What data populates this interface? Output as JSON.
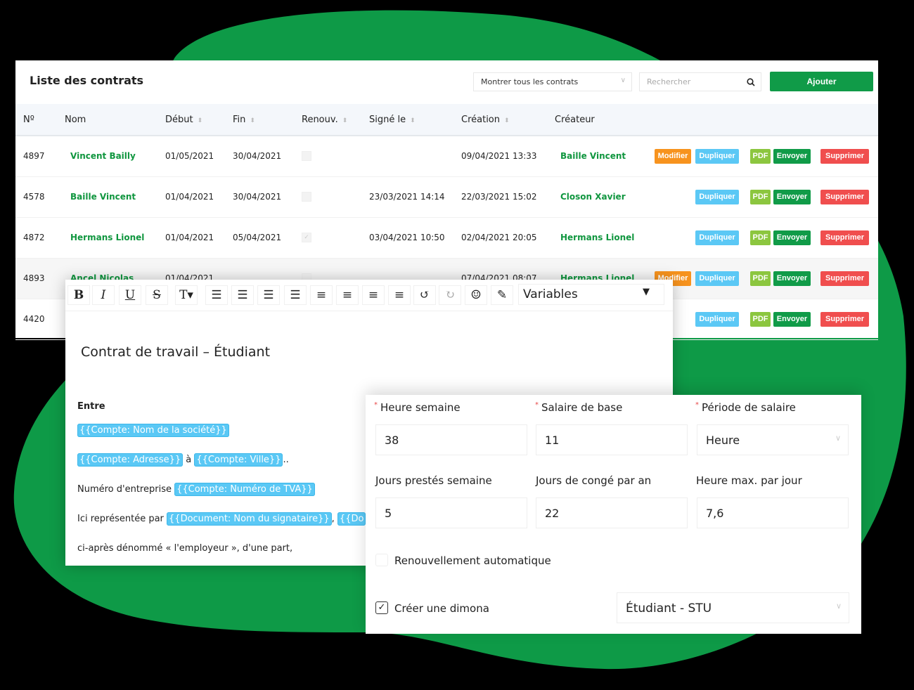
{
  "colors": {
    "brand": "#109b48",
    "blob": "#0e9a47",
    "modifier": "#f7931e",
    "dupliquer": "#5bc8f5",
    "pdf": "#8cc63f",
    "envoyer": "#109b48",
    "supprimer": "#f04e4e"
  },
  "contracts": {
    "title": "Liste des contrats",
    "filter": "Montrer tous les contrats",
    "search_placeholder": "Rechercher",
    "add_label": "Ajouter",
    "columns": [
      "Nº",
      "Nom",
      "Début",
      "Fin",
      "Renouv.",
      "Signé le",
      "Création",
      "Créateur"
    ],
    "actions": {
      "modifier": "Modifier",
      "dupliquer": "Dupliquer",
      "pdf": "PDF",
      "envoyer": "Envoyer",
      "supprimer": "Supprimer"
    },
    "rows": [
      {
        "id": "4897",
        "name": "Vincent Bailly",
        "start": "01/05/2021",
        "end": "30/04/2021",
        "renew": false,
        "signed": "",
        "created": "09/04/2021 13:33",
        "creator": "Baille Vincent",
        "editable": true
      },
      {
        "id": "4578",
        "name": "Baille Vincent",
        "start": "01/04/2021",
        "end": "30/04/2021",
        "renew": false,
        "signed": "23/03/2021 14:14",
        "created": "22/03/2021 15:02",
        "creator": "Closon Xavier",
        "editable": false
      },
      {
        "id": "4872",
        "name": "Hermans Lionel",
        "start": "01/04/2021",
        "end": "05/04/2021",
        "renew": true,
        "signed": "03/04/2021 10:50",
        "created": "02/04/2021 20:05",
        "creator": "Hermans Lionel",
        "editable": false
      },
      {
        "id": "4893",
        "name": "Ancel Nicolas",
        "start": "01/04/2021",
        "end": "",
        "renew": false,
        "signed": "",
        "created": "07/04/2021 08:07",
        "creator": "Hermans Lionel",
        "editable": true
      },
      {
        "id": "4420",
        "name": "",
        "start": "",
        "end": "",
        "renew": false,
        "signed": "",
        "created": "",
        "creator": "",
        "editable": false
      }
    ]
  },
  "editor": {
    "toolbar": [
      {
        "icon": "bold-icon",
        "glyph": "B"
      },
      {
        "icon": "italic-icon",
        "glyph": "I"
      },
      {
        "icon": "underline-icon",
        "glyph": "U"
      },
      {
        "icon": "strikethrough-icon",
        "glyph": "S"
      },
      {
        "icon": "text-size-icon",
        "glyph": "T▾"
      },
      {
        "icon": "bullet-list-icon",
        "glyph": "☰"
      },
      {
        "icon": "numbered-list-icon",
        "glyph": "☰"
      },
      {
        "icon": "indent-icon",
        "glyph": "☰"
      },
      {
        "icon": "outdent-icon",
        "glyph": "☰"
      },
      {
        "icon": "align-left-icon",
        "glyph": "≡"
      },
      {
        "icon": "align-center-icon",
        "glyph": "≡"
      },
      {
        "icon": "align-right-icon",
        "glyph": "≡"
      },
      {
        "icon": "justify-icon",
        "glyph": "≡"
      },
      {
        "icon": "undo-icon",
        "glyph": "↺"
      },
      {
        "icon": "redo-icon",
        "glyph": "↻"
      },
      {
        "icon": "emoji-icon",
        "glyph": "☺"
      },
      {
        "icon": "pen-icon",
        "glyph": "✎"
      }
    ],
    "variables_label": "Variables",
    "doc_title": "Contrat de travail – Étudiant",
    "entre": "Entre",
    "v_company": "{{Compte: Nom de la société}}",
    "v_address": "{{Compte: Adresse}}",
    "a": " à ",
    "v_city": "{{Compte: Ville}}",
    "dots": "..",
    "vat_label": "Numéro d'entreprise ",
    "v_vat": "{{Compte: Numéro de TVA}}",
    "rep_label": "Ici représentée par ",
    "v_signer": "{{Document: Nom du signataire}}",
    "comma": ", ",
    "v_doc_trunc": "{{Do",
    "employer": "ci-après dénommé « l'employeur », d'une part,"
  },
  "form": {
    "hours_week": {
      "label": "Heure semaine",
      "value": "38"
    },
    "base_salary": {
      "label": "Salaire de base",
      "value": "11"
    },
    "salary_period": {
      "label": "Période de salaire",
      "value": "Heure"
    },
    "days_week": {
      "label": "Jours prestés semaine",
      "value": "5"
    },
    "leave_days": {
      "label": "Jours de congé par an",
      "value": "22"
    },
    "max_hours": {
      "label": "Heure max. par jour",
      "value": "7,6"
    },
    "auto_renew": {
      "label": "Renouvellement automatique",
      "checked": false
    },
    "dimona": {
      "label": "Créer une dimona",
      "checked": true
    },
    "dimona_type": "Étudiant - STU"
  }
}
